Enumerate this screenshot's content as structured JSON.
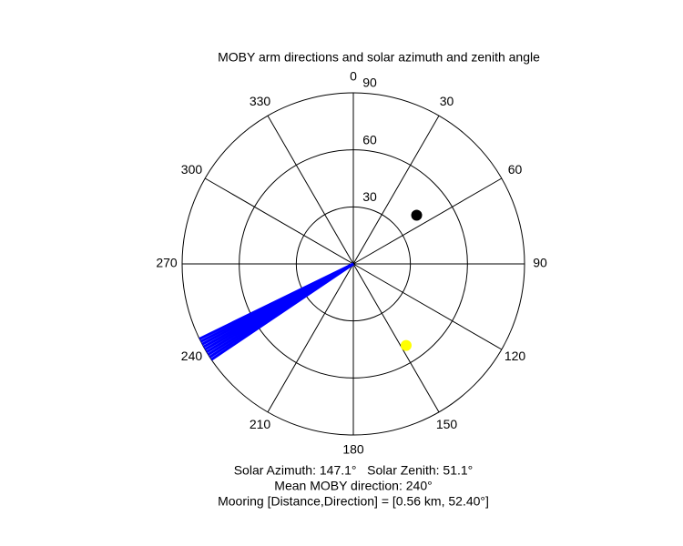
{
  "chart_data": {
    "type": "polar",
    "title": "MOBY arm directions and solar azimuth and zenith angle",
    "theta_direction": "clockwise",
    "theta_zero": "north",
    "thetaticks": [
      0,
      30,
      60,
      90,
      120,
      150,
      180,
      210,
      240,
      270,
      300,
      330
    ],
    "rlim": [
      0,
      90
    ],
    "rticks": [
      30,
      60,
      90
    ],
    "series": [
      {
        "mode": "spokes",
        "color": "#0000ff",
        "theta": [
          236,
          237,
          238,
          239,
          240,
          241,
          242,
          243,
          244
        ],
        "r": [
          90,
          90,
          90,
          90,
          90,
          90,
          90,
          90,
          90
        ]
      },
      {
        "mode": "marker",
        "color": "#000000",
        "theta": [
          52.4
        ],
        "r": [
          42
        ]
      },
      {
        "mode": "marker",
        "color": "#ffff00",
        "theta": [
          147.1
        ],
        "r": [
          51.1
        ]
      }
    ],
    "annotations": [
      "Solar Azimuth: 147.1°   Solar Zenith: 51.1°",
      "Mean MOBY direction: 240°",
      "Mooring [Distance,Direction] = [0.56 km, 52.40°]"
    ]
  }
}
